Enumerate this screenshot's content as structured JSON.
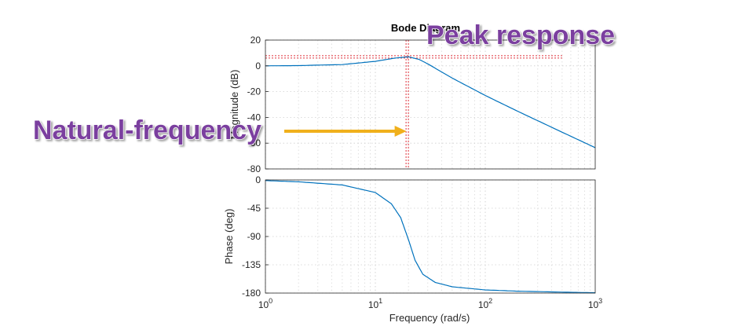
{
  "chart_data": {
    "type": "line",
    "title": "Bode Diagram",
    "xlabel": "Frequency  (rad/s)",
    "xscale": "log",
    "xlim": [
      1,
      1000
    ],
    "x_ticks": [
      {
        "base": "10",
        "exp": "0"
      },
      {
        "base": "10",
        "exp": "1"
      },
      {
        "base": "10",
        "exp": "2"
      },
      {
        "base": "10",
        "exp": "3"
      }
    ],
    "grid": true,
    "line_color": "#0072bd",
    "marker_color": "#e0303a",
    "annotation_color": "#7b3f9f",
    "arrow_color": "#f0b01c",
    "magnitude": {
      "ylabel": "Magnitude (dB)",
      "ylim": [
        -80,
        20
      ],
      "yticks": [
        "20",
        "0",
        "-20",
        "-40",
        "-60",
        "-80"
      ],
      "x": [
        1,
        2,
        5,
        10,
        15,
        20,
        25,
        30,
        50,
        100,
        200,
        500,
        1000
      ],
      "values": [
        0,
        0.2,
        1,
        3.5,
        6,
        7,
        5,
        1.5,
        -9.5,
        -23,
        -35.5,
        -51.5,
        -63.5
      ]
    },
    "phase": {
      "ylabel": "Phase (deg)",
      "ylim": [
        -180,
        0
      ],
      "yticks": [
        "0",
        "-45",
        "-90",
        "-135",
        "-180"
      ],
      "x": [
        1,
        2,
        5,
        10,
        14,
        17,
        20,
        23,
        27,
        35,
        50,
        100,
        200,
        500,
        1000
      ],
      "values": [
        -1,
        -3,
        -8,
        -20,
        -38,
        -60,
        -95,
        -128,
        -150,
        -163,
        -170,
        -175,
        -177,
        -178.5,
        -179.5
      ]
    },
    "natural_frequency_x": 19.5,
    "peak_magnitude_db": 7,
    "annotations": {
      "peak": "Peak response",
      "natural": "Natural-frequency"
    }
  }
}
